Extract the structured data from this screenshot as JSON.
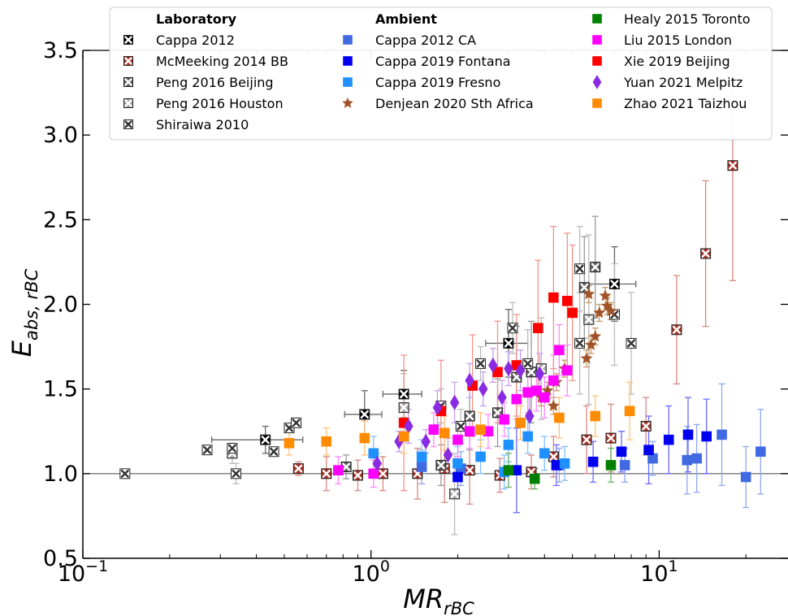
{
  "chart_data": {
    "type": "scatter",
    "title": "",
    "xlabel_main": "MR",
    "xlabel_sub": "rBC",
    "ylabel_main": "E",
    "ylabel_sub": "abs, rBC",
    "xscale": "log",
    "xlim": [
      0.1,
      28
    ],
    "ylim": [
      0.5,
      3.5
    ],
    "x_ticks": [
      {
        "value": 0.1,
        "base": "10",
        "exp": "−1"
      },
      {
        "value": 1,
        "base": "10",
        "exp": "0"
      },
      {
        "value": 10,
        "base": "10",
        "exp": "1"
      }
    ],
    "y_ticks": [
      0.5,
      1.0,
      1.5,
      2.0,
      2.5,
      3.0,
      3.5
    ],
    "reference_line_y": 1.0,
    "grid": false,
    "legend_position": "top",
    "legend_group_headings": {
      "laboratory": "Laboratory",
      "ambient": "Ambient"
    },
    "series": [
      {
        "name": "Cappa 2012",
        "group": "laboratory",
        "marker": "x-square",
        "color": "#000000",
        "fill": "#000000",
        "errcolor": "#666666",
        "points": [
          [
            0.43,
            1.2,
            0.08,
            0.15
          ],
          [
            0.95,
            1.35,
            0.14,
            0.14
          ],
          [
            1.3,
            1.47,
            0.14,
            0.2
          ],
          [
            3.0,
            1.77,
            0.2,
            0.5
          ],
          [
            7.0,
            2.12,
            0.22,
            1.3
          ]
        ]
      },
      {
        "name": "McMeeking 2014 BB",
        "group": "laboratory",
        "marker": "x-square",
        "color": "#c0392b",
        "fill": "#a93226",
        "errcolor": "#d98880",
        "points": [
          [
            0.56,
            1.03,
            0.04,
            0
          ],
          [
            0.7,
            1.0,
            0.1,
            0
          ],
          [
            0.9,
            0.99,
            0.09,
            0
          ],
          [
            1.1,
            1.0,
            0.1,
            0
          ],
          [
            1.45,
            1.0,
            0.15,
            0
          ],
          [
            1.8,
            1.03,
            0.2,
            0
          ],
          [
            2.2,
            1.02,
            0.2,
            0
          ],
          [
            2.8,
            0.99,
            0.1,
            0
          ],
          [
            3.6,
            1.01,
            0.1,
            0
          ],
          [
            4.3,
            1.1,
            0.12,
            0
          ],
          [
            5.6,
            1.2,
            0.2,
            0
          ],
          [
            6.8,
            1.21,
            0.2,
            0
          ],
          [
            9.0,
            1.28,
            0.17,
            0
          ],
          [
            11.5,
            1.85,
            0.32,
            0
          ],
          [
            14.5,
            2.3,
            0.43,
            0
          ],
          [
            18.0,
            2.82,
            0.68,
            0
          ]
        ]
      },
      {
        "name": "Peng 2016 Beijing",
        "group": "laboratory",
        "marker": "x-square",
        "color": "#555555",
        "fill": "#606060",
        "errcolor": "#999999",
        "points": [
          [
            0.82,
            1.04,
            0.07,
            0
          ],
          [
            1.75,
            1.05,
            0.12,
            0
          ],
          [
            2.2,
            1.34,
            0.2,
            0
          ],
          [
            2.75,
            1.36,
            0.2,
            0
          ],
          [
            3.2,
            1.57,
            0.3,
            0
          ],
          [
            3.6,
            1.6,
            0.3,
            0
          ],
          [
            5.5,
            2.1,
            0.3,
            0
          ],
          [
            6.0,
            2.22,
            0.3,
            0
          ]
        ]
      },
      {
        "name": "Peng 2016 Houston",
        "group": "laboratory",
        "marker": "x-square",
        "color": "#777777",
        "fill": "#a8a8a8",
        "errcolor": "#bbbbbb",
        "points": [
          [
            0.33,
            1.12,
            0.06,
            0
          ],
          [
            1.3,
            1.39,
            0.2,
            0
          ],
          [
            1.95,
            0.88,
            0.24,
            0
          ],
          [
            3.9,
            1.62,
            0.3,
            0
          ],
          [
            5.7,
            1.91,
            0.5,
            0
          ]
        ]
      },
      {
        "name": "Shiraiwa 2010",
        "group": "laboratory",
        "marker": "x-square",
        "color": "#333333",
        "fill": "#ffffff",
        "errcolor": "#bbbbbb",
        "points": [
          [
            0.14,
            1.0,
            0,
            0
          ],
          [
            0.27,
            1.14,
            0,
            0
          ],
          [
            0.33,
            1.15,
            0,
            0
          ],
          [
            0.34,
            1.0,
            0.06,
            0
          ],
          [
            0.46,
            1.13,
            0,
            0
          ],
          [
            0.52,
            1.27,
            0,
            0
          ],
          [
            0.55,
            1.3,
            0,
            0
          ],
          [
            1.75,
            1.4,
            0.1,
            0
          ],
          [
            2.05,
            1.28,
            0.1,
            0
          ],
          [
            2.4,
            1.65,
            0.1,
            0
          ],
          [
            3.1,
            1.86,
            0.15,
            0
          ],
          [
            3.5,
            1.65,
            0.2,
            0
          ],
          [
            5.3,
            2.21,
            0.25,
            0
          ],
          [
            5.3,
            1.77,
            0.3,
            0
          ],
          [
            7.0,
            1.94,
            0.3,
            0
          ],
          [
            8.0,
            1.77,
            0.3,
            0
          ]
        ]
      },
      {
        "name": "Cappa 2012 CA",
        "group": "ambient",
        "marker": "square",
        "color": "#4169e1",
        "fill": "#4169e1",
        "errcolor": "#8fa8f0",
        "points": [
          [
            1.5,
            1.04,
            0.1,
            0
          ],
          [
            2.05,
            1.03,
            0.1,
            0
          ],
          [
            4.5,
            1.05,
            0.1,
            0
          ],
          [
            7.6,
            1.05,
            0.1,
            0
          ],
          [
            9.5,
            1.09,
            0.1,
            0
          ],
          [
            12.5,
            1.08,
            0.2,
            0
          ],
          [
            13.5,
            1.09,
            0.2,
            0
          ],
          [
            16.5,
            1.23,
            0.3,
            0
          ],
          [
            20.0,
            0.98,
            0.18,
            0
          ],
          [
            22.5,
            1.13,
            0.25,
            0
          ]
        ]
      },
      {
        "name": "Cappa 2019 Fontana",
        "group": "ambient",
        "marker": "square",
        "color": "#0000ff",
        "fill": "#0000ee",
        "errcolor": "#6a6aff",
        "points": [
          [
            2.0,
            0.98,
            0.1,
            0
          ],
          [
            3.2,
            1.02,
            0.25,
            0
          ],
          [
            4.4,
            1.05,
            0.12,
            0
          ],
          [
            5.9,
            1.07,
            0.12,
            0
          ],
          [
            7.4,
            1.13,
            0.12,
            0
          ],
          [
            9.2,
            1.14,
            0.2,
            0
          ],
          [
            10.8,
            1.2,
            0.2,
            0
          ],
          [
            12.6,
            1.23,
            0.22,
            0
          ],
          [
            14.6,
            1.22,
            0.22,
            0
          ]
        ]
      },
      {
        "name": "Cappa 2019 Fresno",
        "group": "ambient",
        "marker": "square",
        "color": "#1e90ff",
        "fill": "#1e90ff",
        "errcolor": "#82c0ff",
        "points": [
          [
            1.02,
            1.12,
            0.1,
            0
          ],
          [
            1.5,
            1.1,
            0.1,
            0
          ],
          [
            2.0,
            1.06,
            0.1,
            0
          ],
          [
            2.4,
            1.1,
            0.1,
            0
          ],
          [
            2.9,
            1.01,
            0.1,
            0
          ],
          [
            3.0,
            1.17,
            0.1,
            0
          ],
          [
            3.5,
            1.22,
            0.1,
            0
          ],
          [
            4.0,
            1.12,
            0.1,
            0
          ],
          [
            4.7,
            1.06,
            0.1,
            0
          ]
        ]
      },
      {
        "name": "Denjean 2020 Sth Africa",
        "group": "ambient",
        "marker": "star",
        "color": "#b5651d",
        "fill": "#a0522d",
        "errcolor": "#c49a6c",
        "points": [
          [
            3.9,
            1.45,
            0.05,
            0
          ],
          [
            4.1,
            1.49,
            0.05,
            0
          ],
          [
            4.3,
            1.4,
            0.05,
            0
          ],
          [
            4.4,
            1.54,
            0.05,
            0
          ],
          [
            4.7,
            1.62,
            0.05,
            0
          ],
          [
            5.6,
            1.68,
            0.05,
            0
          ],
          [
            5.8,
            1.76,
            0.05,
            0
          ],
          [
            6.0,
            1.81,
            0.05,
            0
          ],
          [
            5.7,
            2.06,
            0.05,
            0
          ],
          [
            6.2,
            1.95,
            0.05,
            0
          ],
          [
            6.5,
            2.05,
            0.05,
            0
          ],
          [
            6.6,
            1.99,
            0.05,
            0
          ],
          [
            6.8,
            1.96,
            0.05,
            0
          ]
        ]
      },
      {
        "name": "Healy 2015 Toronto",
        "group": "ambient",
        "marker": "square",
        "color": "#008000",
        "fill": "#008000",
        "errcolor": "#66b266",
        "points": [
          [
            3.0,
            1.02,
            0.1,
            0
          ],
          [
            3.7,
            0.97,
            0.06,
            0
          ],
          [
            6.8,
            1.05,
            0.1,
            0
          ]
        ]
      },
      {
        "name": "Liu 2015 London",
        "group": "ambient",
        "marker": "square",
        "color": "#ff00ff",
        "fill": "#ff00ff",
        "errcolor": "#ff88ff",
        "points": [
          [
            0.77,
            1.02,
            0.08,
            0
          ],
          [
            1.02,
            1.0,
            0.08,
            0
          ],
          [
            1.65,
            1.26,
            0.1,
            0
          ],
          [
            2.0,
            1.2,
            0.1,
            0
          ],
          [
            2.2,
            1.25,
            0.1,
            0
          ],
          [
            2.55,
            1.25,
            0.1,
            0
          ],
          [
            2.9,
            1.32,
            0.1,
            0
          ],
          [
            3.2,
            1.44,
            0.12,
            0
          ],
          [
            3.5,
            1.48,
            0.12,
            0
          ],
          [
            3.75,
            1.49,
            0.12,
            0
          ],
          [
            4.0,
            1.45,
            0.12,
            0
          ],
          [
            4.3,
            1.55,
            0.15,
            0
          ],
          [
            4.5,
            1.73,
            0.15,
            0
          ],
          [
            4.8,
            1.61,
            0.15,
            0
          ]
        ]
      },
      {
        "name": "Xie 2019 Beijing",
        "group": "ambient",
        "marker": "square",
        "color": "#ff0000",
        "fill": "#ff0000",
        "errcolor": "#f1948a",
        "points": [
          [
            1.3,
            1.3,
            0.4,
            0
          ],
          [
            1.75,
            1.37,
            0.3,
            0
          ],
          [
            2.25,
            1.52,
            0.3,
            0
          ],
          [
            2.75,
            1.6,
            0.3,
            0
          ],
          [
            3.2,
            1.64,
            0.3,
            0
          ],
          [
            3.8,
            1.86,
            0.4,
            0
          ],
          [
            4.3,
            2.04,
            0.42,
            0
          ],
          [
            4.8,
            2.02,
            0.4,
            0
          ],
          [
            5.0,
            1.95,
            0.4,
            0
          ]
        ]
      },
      {
        "name": "Yuan 2021 Melpitz",
        "group": "ambient",
        "marker": "diamond",
        "color": "#8a2be2",
        "fill": "#8a2be2",
        "errcolor": "#c49ef0",
        "points": [
          [
            1.05,
            1.06,
            0.06,
            0
          ],
          [
            1.25,
            1.19,
            0.06,
            0
          ],
          [
            1.35,
            1.28,
            0.1,
            0
          ],
          [
            1.55,
            1.19,
            0.07,
            0
          ],
          [
            1.7,
            1.39,
            0.1,
            0
          ],
          [
            1.85,
            1.11,
            0.1,
            0
          ],
          [
            1.95,
            1.42,
            0.12,
            0
          ],
          [
            2.2,
            1.55,
            0.1,
            0
          ],
          [
            2.45,
            1.5,
            0.1,
            0
          ],
          [
            2.65,
            1.64,
            0.1,
            0
          ],
          [
            2.85,
            1.45,
            0.1,
            0
          ],
          [
            3.0,
            1.62,
            0.1,
            0
          ],
          [
            3.3,
            1.61,
            0.12,
            0
          ],
          [
            3.55,
            1.34,
            0.12,
            0
          ],
          [
            3.85,
            1.59,
            0.12,
            0
          ]
        ]
      },
      {
        "name": "Zhao 2021 Taizhou",
        "group": "ambient",
        "marker": "square",
        "color": "#ff8c00",
        "fill": "#ff8c00",
        "errcolor": "#ffc27a",
        "points": [
          [
            0.52,
            1.18,
            0.07,
            0
          ],
          [
            0.7,
            1.19,
            0.08,
            0
          ],
          [
            0.95,
            1.21,
            0.1,
            0
          ],
          [
            1.3,
            1.22,
            0.1,
            0
          ],
          [
            1.8,
            1.24,
            0.1,
            0
          ],
          [
            2.4,
            1.26,
            0.1,
            0
          ],
          [
            3.3,
            1.3,
            0.1,
            0
          ],
          [
            4.5,
            1.33,
            0.12,
            0
          ],
          [
            6.0,
            1.34,
            0.12,
            0
          ],
          [
            7.9,
            1.37,
            0.17,
            0
          ]
        ]
      }
    ]
  }
}
